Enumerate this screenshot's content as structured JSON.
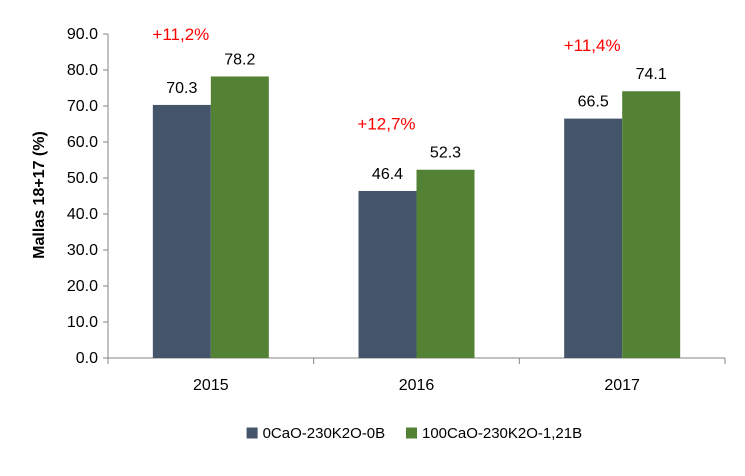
{
  "chart_data": {
    "type": "bar",
    "ylabel": "Mallas 18+17 (%)",
    "ylim": [
      0,
      90
    ],
    "ytick_step": 10,
    "ytick_decimals": 1,
    "grid": false,
    "legend_position": "bottom",
    "categories": [
      "2015",
      "2016",
      "2017"
    ],
    "series": [
      {
        "name": "0CaO-230K2O-0B",
        "color": "#44546A",
        "values": [
          70.3,
          46.4,
          66.5
        ],
        "labels": [
          "70.3",
          "46.4",
          "66.5"
        ]
      },
      {
        "name": "100CaO-230K2O-1,21B",
        "color": "#548235",
        "values": [
          78.2,
          52.3,
          74.1
        ],
        "labels": [
          "78.2",
          "52.3",
          "74.1"
        ]
      }
    ],
    "annotations": [
      {
        "category": "2015",
        "text": "+11,2%",
        "color": "#FF0000"
      },
      {
        "category": "2016",
        "text": "+12,7%",
        "color": "#FF0000"
      },
      {
        "category": "2017",
        "text": "+11,4%",
        "color": "#FF0000"
      }
    ]
  }
}
